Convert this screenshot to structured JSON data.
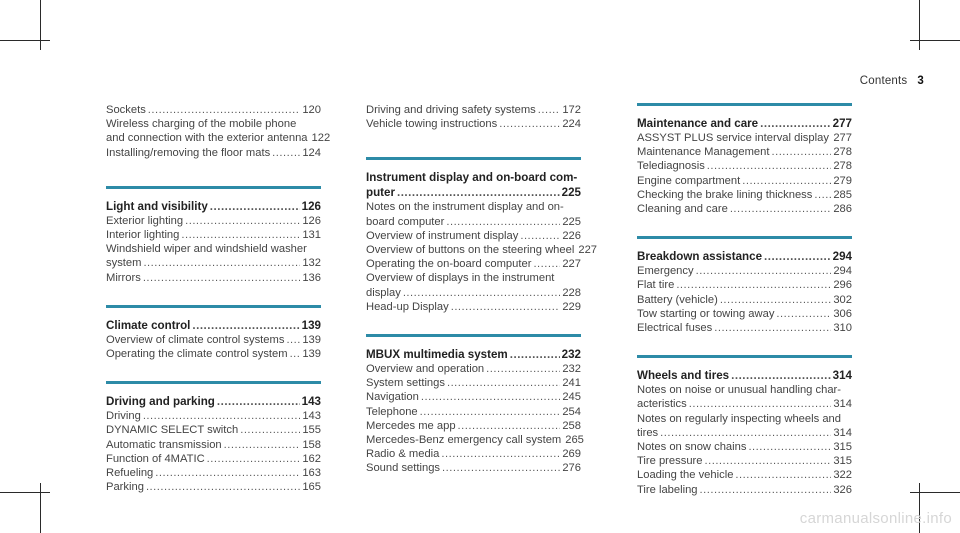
{
  "header": {
    "title": "Contents",
    "page": "3"
  },
  "col1": [
    {
      "entries": [
        {
          "lines": [],
          "label": "Sockets",
          "page": "120"
        },
        {
          "lines": [
            "Wireless charging of the mobile phone"
          ],
          "label": "and connection with the exterior antenna",
          "page": "122"
        },
        {
          "lines": [],
          "label": "Installing/removing the floor mats",
          "page": "124"
        }
      ]
    },
    {
      "heading": {
        "lines": [],
        "label": "Light and visibility",
        "page": "126"
      },
      "entries": [
        {
          "lines": [],
          "label": "Exterior lighting",
          "page": "126"
        },
        {
          "lines": [],
          "label": "Interior lighting",
          "page": "131"
        },
        {
          "lines": [
            "Windshield wiper and windshield washer"
          ],
          "label": "system",
          "page": "132"
        },
        {
          "lines": [],
          "label": "Mirrors",
          "page": "136"
        }
      ]
    },
    {
      "heading": {
        "lines": [],
        "label": "Climate control",
        "page": "139"
      },
      "entries": [
        {
          "lines": [],
          "label": "Overview of climate control systems",
          "page": "139"
        },
        {
          "lines": [],
          "label": "Operating the climate control system",
          "page": "139"
        }
      ]
    },
    {
      "heading": {
        "lines": [],
        "label": "Driving and parking",
        "page": "143"
      },
      "entries": [
        {
          "lines": [],
          "label": "Driving",
          "page": "143"
        },
        {
          "lines": [],
          "label": "DYNAMIC SELECT switch",
          "page": "155"
        },
        {
          "lines": [],
          "label": "Automatic transmission",
          "page": "158"
        },
        {
          "lines": [],
          "label": "Function of 4MATIC",
          "page": "162"
        },
        {
          "lines": [],
          "label": "Refueling",
          "page": "163"
        },
        {
          "lines": [],
          "label": "Parking",
          "page": "165"
        }
      ]
    }
  ],
  "col2": [
    {
      "entries": [
        {
          "lines": [],
          "label": "Driving and driving safety systems",
          "page": "172"
        },
        {
          "lines": [],
          "label": "Vehicle towing instructions",
          "page": "224"
        }
      ]
    },
    {
      "heading": {
        "lines": [
          "Instrument display and on-board com-"
        ],
        "label": "puter",
        "page": "225"
      },
      "entries": [
        {
          "lines": [
            "Notes on the instrument display and on-"
          ],
          "label": "board computer",
          "page": "225"
        },
        {
          "lines": [],
          "label": "Overview of instrument display",
          "page": "226"
        },
        {
          "lines": [],
          "label": "Overview of buttons on the steering wheel",
          "page": "227"
        },
        {
          "lines": [],
          "label": "Operating the on-board computer",
          "page": "227"
        },
        {
          "lines": [
            "Overview of displays in the instrument"
          ],
          "label": "display",
          "page": "228"
        },
        {
          "lines": [],
          "label": "Head-up Display",
          "page": "229"
        }
      ]
    },
    {
      "heading": {
        "lines": [],
        "label": "MBUX multimedia system",
        "page": "232"
      },
      "entries": [
        {
          "lines": [],
          "label": "Overview and operation",
          "page": "232"
        },
        {
          "lines": [],
          "label": "System settings",
          "page": "241"
        },
        {
          "lines": [],
          "label": "Navigation",
          "page": "245"
        },
        {
          "lines": [],
          "label": "Telephone",
          "page": "254"
        },
        {
          "lines": [],
          "label": "Mercedes me app",
          "page": "258"
        },
        {
          "lines": [],
          "label": "Mercedes-Benz emergency call system",
          "page": "265"
        },
        {
          "lines": [],
          "label": "Radio & media",
          "page": "269"
        },
        {
          "lines": [],
          "label": "Sound settings",
          "page": "276"
        }
      ]
    }
  ],
  "col3": [
    {
      "heading": {
        "lines": [],
        "label": "Maintenance and care",
        "page": "277"
      },
      "entries": [
        {
          "lines": [],
          "label": "ASSYST PLUS service interval display",
          "page": "277"
        },
        {
          "lines": [],
          "label": "Maintenance Management",
          "page": "278"
        },
        {
          "lines": [],
          "label": "Telediagnosis",
          "page": "278"
        },
        {
          "lines": [],
          "label": "Engine compartment",
          "page": "279"
        },
        {
          "lines": [],
          "label": "Checking the brake lining thickness",
          "page": "285"
        },
        {
          "lines": [],
          "label": "Cleaning and care",
          "page": "286"
        }
      ]
    },
    {
      "heading": {
        "lines": [],
        "label": "Breakdown assistance",
        "page": "294"
      },
      "entries": [
        {
          "lines": [],
          "label": "Emergency",
          "page": "294"
        },
        {
          "lines": [],
          "label": "Flat tire",
          "page": "296"
        },
        {
          "lines": [],
          "label": "Battery (vehicle)",
          "page": "302"
        },
        {
          "lines": [],
          "label": "Tow starting or towing away",
          "page": "306"
        },
        {
          "lines": [],
          "label": "Electrical fuses",
          "page": "310"
        }
      ]
    },
    {
      "heading": {
        "lines": [],
        "label": "Wheels and tires",
        "page": "314"
      },
      "entries": [
        {
          "lines": [
            "Notes on noise or unusual handling char-"
          ],
          "label": "acteristics",
          "page": "314"
        },
        {
          "lines": [
            "Notes on regularly inspecting wheels and"
          ],
          "label": "tires",
          "page": "314"
        },
        {
          "lines": [],
          "label": "Notes on snow chains",
          "page": "315"
        },
        {
          "lines": [],
          "label": "Tire pressure",
          "page": "315"
        },
        {
          "lines": [],
          "label": "Loading the vehicle",
          "page": "322"
        },
        {
          "lines": [],
          "label": "Tire labeling",
          "page": "326"
        }
      ]
    }
  ],
  "watermark": "carmanualsonline.info",
  "colors": {
    "accent_bar": "#2d8ba7",
    "text": "#3a3a3a"
  }
}
